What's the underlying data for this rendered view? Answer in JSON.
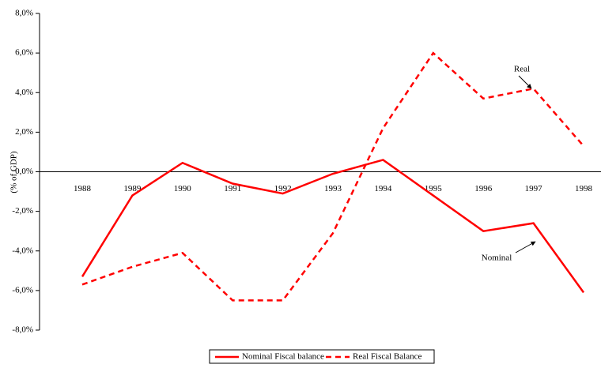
{
  "chart_data": {
    "type": "line",
    "y_label": "(% of GDP)",
    "categories": [
      "1988",
      "1989",
      "1990",
      "1991",
      "1992",
      "1993",
      "1994",
      "1995",
      "1996",
      "1997",
      "1998"
    ],
    "series": [
      {
        "name": "Nominal Fiscal balance",
        "color": "#ff0000",
        "dash": false,
        "values": [
          -5.3,
          -1.2,
          0.45,
          -0.6,
          -1.1,
          -0.1,
          0.6,
          -1.2,
          -3.0,
          -2.6,
          -6.1
        ]
      },
      {
        "name": "Real Fiscal Balance",
        "color": "#ff0000",
        "dash": true,
        "values": [
          -5.7,
          -4.8,
          -4.1,
          -6.5,
          -6.5,
          -3.1,
          2.2,
          6.0,
          3.7,
          4.2,
          1.3
        ]
      }
    ],
    "ylim": [
      -8,
      8
    ],
    "yticks": [
      {
        "value": -8,
        "label": "-8,0%"
      },
      {
        "value": -6,
        "label": "-6,0%"
      },
      {
        "value": -4,
        "label": "-4,0%"
      },
      {
        "value": -2,
        "label": "-2,0%"
      },
      {
        "value": 0,
        "label": "0,0%"
      },
      {
        "value": 2,
        "label": "2,0%"
      },
      {
        "value": 4,
        "label": "4,0%"
      },
      {
        "value": 6,
        "label": "6,0%"
      },
      {
        "value": 8,
        "label": "8,0%"
      }
    ],
    "annotations": [
      "Real",
      "Nominal"
    ],
    "legend": "bottom"
  }
}
